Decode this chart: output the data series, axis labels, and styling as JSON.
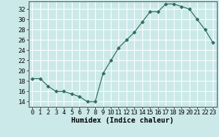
{
  "x": [
    0,
    1,
    2,
    3,
    4,
    5,
    6,
    7,
    8,
    9,
    10,
    11,
    12,
    13,
    14,
    15,
    16,
    17,
    18,
    19,
    20,
    21,
    22,
    23
  ],
  "y": [
    18.5,
    18.5,
    17,
    16,
    16,
    15.5,
    15,
    14,
    14,
    19.5,
    22,
    24.5,
    26,
    27.5,
    29.5,
    31.5,
    31.5,
    33,
    33,
    32.5,
    32,
    30,
    28,
    25.5
  ],
  "xlabel": "Humidex (Indice chaleur)",
  "ylabel": "",
  "xlim": [
    -0.5,
    23.5
  ],
  "ylim": [
    13.0,
    33.5
  ],
  "yticks": [
    14,
    16,
    18,
    20,
    22,
    24,
    26,
    28,
    30,
    32
  ],
  "xticks": [
    0,
    1,
    2,
    3,
    4,
    5,
    6,
    7,
    8,
    9,
    10,
    11,
    12,
    13,
    14,
    15,
    16,
    17,
    18,
    19,
    20,
    21,
    22,
    23
  ],
  "line_color": "#2d6e5e",
  "marker": "D",
  "marker_size": 2.5,
  "bg_color": "#cce9e9",
  "grid_color": "#ffffff",
  "xlabel_fontsize": 7.5,
  "tick_fontsize": 6.5
}
